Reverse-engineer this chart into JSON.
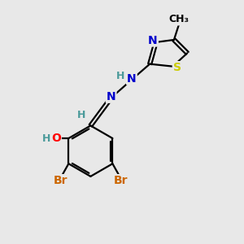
{
  "background_color": "#e8e8e8",
  "bond_color": "#000000",
  "atom_colors": {
    "N": "#0000cc",
    "S": "#cccc00",
    "O": "#ff0000",
    "Br": "#cc6600",
    "C": "#000000",
    "H": "#4a9a9a"
  },
  "font_size": 10,
  "lw": 1.6
}
